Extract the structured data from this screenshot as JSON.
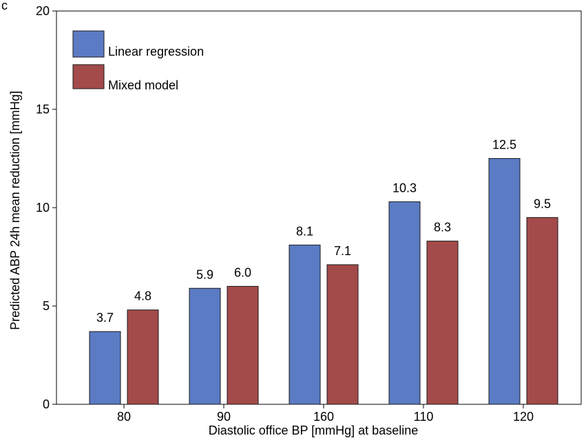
{
  "chart_data": {
    "type": "bar",
    "title": "",
    "xlabel": "Diastolic office BP [mmHg] at baseline",
    "ylabel": "Predicted ABP 24h mean reduction [mmHg]",
    "categories": [
      "80",
      "90",
      "160",
      "110",
      "120"
    ],
    "series": [
      {
        "name": "Linear regression",
        "color": "#5b7bc4",
        "values": [
          3.7,
          5.9,
          8.1,
          10.3,
          12.5
        ]
      },
      {
        "name": "Mixed model",
        "color": "#a34a4a",
        "values": [
          4.8,
          6.0,
          7.1,
          8.3,
          9.5
        ]
      }
    ],
    "ylim": [
      0,
      20
    ],
    "yticks": [
      0,
      5,
      10,
      15,
      20
    ],
    "grid": false,
    "legend_position": "top-left",
    "data_label_format": "one-decimal"
  }
}
